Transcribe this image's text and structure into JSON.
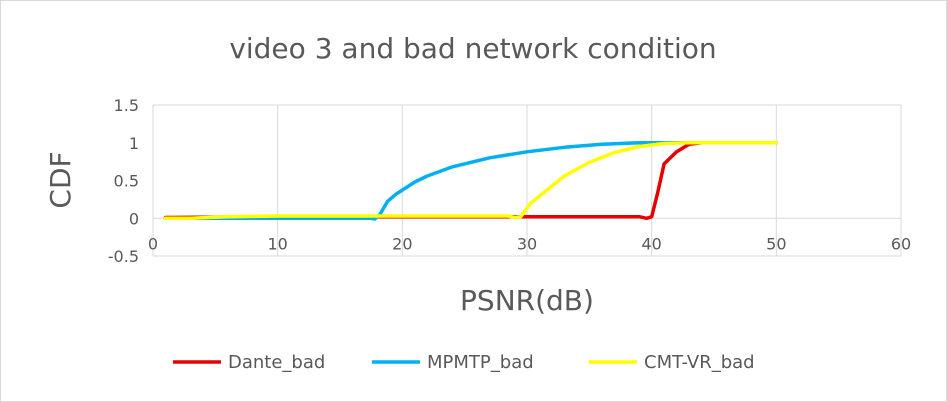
{
  "chart_data": {
    "type": "line",
    "title": "video 3 and bad network condition",
    "xlabel": "PSNR(dB)",
    "ylabel": "CDF",
    "xlim": [
      0,
      60
    ],
    "ylim": [
      -0.5,
      1.5
    ],
    "x_ticks": [
      "0",
      "10",
      "20",
      "30",
      "40",
      "50",
      "60"
    ],
    "y_ticks": [
      "-0.5",
      "0",
      "0.5",
      "1",
      "1.5"
    ],
    "grid": "vertical",
    "legend_position": "bottom",
    "series": [
      {
        "name": "Dante_bad",
        "color": "#e60000",
        "points": [
          [
            1,
            0.01
          ],
          [
            10,
            0.02
          ],
          [
            20,
            0.02
          ],
          [
            30,
            0.02
          ],
          [
            39,
            0.02
          ],
          [
            39.6,
            0.0
          ],
          [
            40.0,
            0.02
          ],
          [
            40.5,
            0.35
          ],
          [
            41.0,
            0.72
          ],
          [
            42.0,
            0.88
          ],
          [
            43.0,
            0.98
          ],
          [
            44,
            1.0
          ],
          [
            50,
            1.0
          ]
        ]
      },
      {
        "name": "MPMTP_bad",
        "color": "#00b0f0",
        "points": [
          [
            1,
            0.0
          ],
          [
            10,
            0.0
          ],
          [
            17.5,
            0.0
          ],
          [
            17.8,
            -0.01
          ],
          [
            18.2,
            0.05
          ],
          [
            18.8,
            0.22
          ],
          [
            19.5,
            0.32
          ],
          [
            21,
            0.48
          ],
          [
            22,
            0.56
          ],
          [
            24,
            0.68
          ],
          [
            27,
            0.8
          ],
          [
            30,
            0.88
          ],
          [
            33,
            0.94
          ],
          [
            36,
            0.98
          ],
          [
            39,
            1.0
          ],
          [
            50,
            1.0
          ]
        ]
      },
      {
        "name": "CMT-VR_bad",
        "color": "#ffff00",
        "points": [
          [
            1,
            0.0
          ],
          [
            3,
            0.0
          ],
          [
            6,
            0.02
          ],
          [
            10,
            0.03
          ],
          [
            20,
            0.03
          ],
          [
            28.5,
            0.03
          ],
          [
            29.0,
            0.01
          ],
          [
            29.5,
            0.02
          ],
          [
            30.3,
            0.2
          ],
          [
            31.5,
            0.36
          ],
          [
            33,
            0.56
          ],
          [
            35,
            0.74
          ],
          [
            37,
            0.87
          ],
          [
            39,
            0.95
          ],
          [
            41,
            0.99
          ],
          [
            43,
            1.0
          ],
          [
            50,
            1.0
          ]
        ]
      }
    ]
  }
}
